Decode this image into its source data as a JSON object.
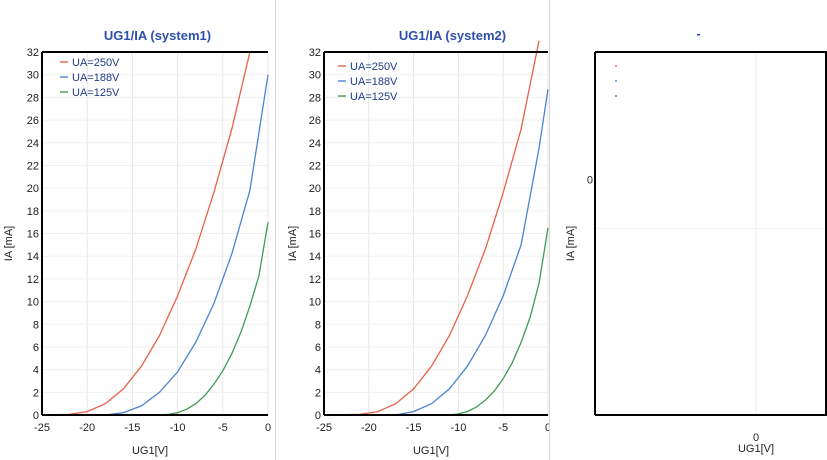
{
  "chart_data": [
    {
      "type": "line",
      "title": "UG1/IA (system1)",
      "xlabel": "UG1[V]",
      "ylabel": "IA [mA]",
      "xlim": [
        -25,
        0
      ],
      "ylim": [
        0,
        32
      ],
      "xticks": [
        "-25",
        "-20",
        "-15",
        "-10",
        "-5",
        "0"
      ],
      "yticks": [
        "0",
        "2",
        "4",
        "6",
        "8",
        "10",
        "12",
        "14",
        "16",
        "18",
        "20",
        "22",
        "24",
        "26",
        "28",
        "30",
        "32"
      ],
      "legend": "top-left",
      "series": [
        {
          "name": "UA=250V",
          "color": "#e8604a",
          "x": [
            -25,
            -22,
            -20,
            -18,
            -16,
            -14,
            -12,
            -10,
            -8,
            -6,
            -4,
            -2
          ],
          "y": [
            0,
            0.05,
            0.3,
            1.0,
            2.3,
            4.3,
            7.0,
            10.5,
            14.6,
            19.6,
            25.2,
            32
          ]
        },
        {
          "name": "UA=188V",
          "color": "#4d82d6",
          "x": [
            -25,
            -18,
            -16,
            -14,
            -12,
            -10,
            -8,
            -6,
            -4,
            -2,
            0
          ],
          "y": [
            0,
            0,
            0.2,
            0.8,
            2.0,
            3.8,
            6.4,
            9.8,
            14.2,
            19.8,
            30
          ]
        },
        {
          "name": "UA=125V",
          "color": "#3f9a52",
          "x": [
            -25,
            -12,
            -11,
            -10,
            -9,
            -8,
            -7,
            -6,
            -5,
            -4,
            -3,
            -2,
            -1,
            0
          ],
          "y": [
            0,
            0,
            0.05,
            0.2,
            0.5,
            1.0,
            1.7,
            2.7,
            3.9,
            5.4,
            7.3,
            9.6,
            12.3,
            17
          ]
        }
      ]
    },
    {
      "type": "line",
      "title": "UG1/IA (system2)",
      "xlabel": "UG1[V]",
      "ylabel": "IA [mA]",
      "xlim": [
        -25,
        0
      ],
      "ylim": [
        0,
        32
      ],
      "xticks": [
        "-25",
        "-20",
        "-15",
        "-10",
        "-5",
        "0"
      ],
      "yticks": [
        "0",
        "2",
        "4",
        "6",
        "8",
        "10",
        "12",
        "14",
        "16",
        "18",
        "20",
        "22",
        "24",
        "26",
        "28",
        "30",
        "32"
      ],
      "legend": "top-left",
      "series": [
        {
          "name": "UA=250V",
          "color": "#e8604a",
          "x": [
            -25,
            -21,
            -19,
            -17,
            -15,
            -13,
            -11,
            -9,
            -7,
            -5,
            -3,
            -1
          ],
          "y": [
            0,
            0.05,
            0.3,
            1.0,
            2.3,
            4.3,
            7.0,
            10.5,
            14.6,
            19.6,
            25.2,
            33
          ]
        },
        {
          "name": "UA=188V",
          "color": "#4d82d6",
          "x": [
            -25,
            -17,
            -15,
            -13,
            -11,
            -9,
            -7,
            -5,
            -3,
            -1,
            0
          ],
          "y": [
            0,
            0,
            0.3,
            1.0,
            2.3,
            4.3,
            7.0,
            10.5,
            15.0,
            23.5,
            28.7
          ]
        },
        {
          "name": "UA=125V",
          "color": "#3f9a52",
          "x": [
            -25,
            -11,
            -10,
            -9,
            -8,
            -7,
            -6,
            -5,
            -4,
            -3,
            -2,
            -1,
            0
          ],
          "y": [
            0,
            0,
            0.1,
            0.3,
            0.7,
            1.3,
            2.1,
            3.2,
            4.6,
            6.4,
            8.6,
            11.6,
            16.5
          ]
        }
      ]
    },
    {
      "type": "line",
      "title": "-",
      "xlabel": "UG1[V]",
      "ylabel": "IA [mA]",
      "xticks": [
        "0"
      ],
      "yticks": [
        "0"
      ],
      "legend": "top-left",
      "series": [
        {
          "name": "",
          "color": "#e8604a",
          "x": [],
          "y": []
        },
        {
          "name": "",
          "color": "#4d82d6",
          "x": [],
          "y": []
        },
        {
          "name": "",
          "color": "#3f9a52",
          "x": [],
          "y": []
        }
      ]
    }
  ]
}
